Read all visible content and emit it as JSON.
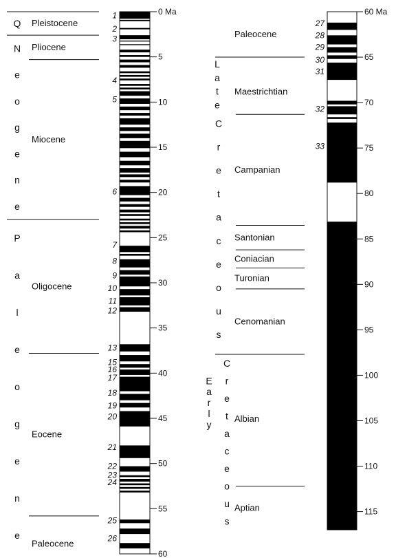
{
  "colors": {
    "normal": "#000000",
    "reversed": "#ffffff",
    "ink": "#111111"
  },
  "left_column": {
    "scale": {
      "min": 0,
      "max": 60,
      "unit": "Ma",
      "ticks": [
        {
          "v": 0,
          "label": "0 Ma"
        },
        {
          "v": 5,
          "label": "5"
        },
        {
          "v": 10,
          "label": "10"
        },
        {
          "v": 15,
          "label": "15"
        },
        {
          "v": 20,
          "label": "20"
        },
        {
          "v": 25,
          "label": "25"
        },
        {
          "v": 30,
          "label": "30"
        },
        {
          "v": 35,
          "label": "35"
        },
        {
          "v": 40,
          "label": "40"
        },
        {
          "v": 45,
          "label": "45"
        },
        {
          "v": 50,
          "label": "50"
        },
        {
          "v": 55,
          "label": "55"
        },
        {
          "v": 60,
          "label": "60"
        }
      ]
    },
    "era_letters": [
      {
        "text": "Q",
        "a": 0,
        "b": 2.6
      },
      {
        "text": "Neogene",
        "a": 2.6,
        "b": 23.0
      },
      {
        "text": "Paleogene",
        "a": 23.0,
        "b": 60
      }
    ],
    "epochs": [
      {
        "text": "Pleistocene",
        "a": 0,
        "b": 2.6
      },
      {
        "text": "Pliocene",
        "a": 2.6,
        "b": 5.3
      },
      {
        "text": "Miocene",
        "a": 5.3,
        "b": 23.0
      },
      {
        "text": "Oligocene",
        "a": 23.0,
        "b": 37.8
      },
      {
        "text": "Eocene",
        "a": 37.8,
        "b": 55.8
      },
      {
        "text": "Paleocene",
        "a": 55.8,
        "b": 60
      }
    ],
    "chrons": [
      {
        "label": "1",
        "v": 0.4
      },
      {
        "label": "2",
        "v": 1.9
      },
      {
        "label": "3",
        "v": 3.0
      },
      {
        "label": "4",
        "v": 7.6
      },
      {
        "label": "5",
        "v": 9.7
      },
      {
        "label": "6",
        "v": 19.9
      },
      {
        "label": "7",
        "v": 25.8
      },
      {
        "label": "8",
        "v": 27.6
      },
      {
        "label": "9",
        "v": 29.2
      },
      {
        "label": "10",
        "v": 30.6
      },
      {
        "label": "11",
        "v": 32.0
      },
      {
        "label": "12",
        "v": 33.1
      },
      {
        "label": "13",
        "v": 37.2
      },
      {
        "label": "15",
        "v": 38.8
      },
      {
        "label": "16",
        "v": 39.6
      },
      {
        "label": "17",
        "v": 40.5
      },
      {
        "label": "18",
        "v": 42.2
      },
      {
        "label": "19",
        "v": 43.6
      },
      {
        "label": "20",
        "v": 44.8
      },
      {
        "label": "21",
        "v": 48.2
      },
      {
        "label": "22",
        "v": 50.3
      },
      {
        "label": "23",
        "v": 51.3
      },
      {
        "label": "24",
        "v": 52.1
      },
      {
        "label": "25",
        "v": 56.3
      },
      {
        "label": "26",
        "v": 58.3
      }
    ],
    "normal_intervals": [
      [
        0,
        0.78
      ],
      [
        0.9,
        1.05
      ],
      [
        1.8,
        1.95
      ],
      [
        2.6,
        3.05
      ],
      [
        3.2,
        3.3
      ],
      [
        3.6,
        3.7
      ],
      [
        4.2,
        4.5
      ],
      [
        4.8,
        5.0
      ],
      [
        5.3,
        5.6
      ],
      [
        5.9,
        6.2
      ],
      [
        6.6,
        6.8
      ],
      [
        7.0,
        7.2
      ],
      [
        7.4,
        7.6
      ],
      [
        8.0,
        8.2
      ],
      [
        8.4,
        8.6
      ],
      [
        8.8,
        9.3
      ],
      [
        9.6,
        10.2
      ],
      [
        10.5,
        10.9
      ],
      [
        11.2,
        11.5
      ],
      [
        11.8,
        12.5
      ],
      [
        12.8,
        13.2
      ],
      [
        13.5,
        14.0
      ],
      [
        14.3,
        15.1
      ],
      [
        15.5,
        16.1
      ],
      [
        16.5,
        17.0
      ],
      [
        17.3,
        17.8
      ],
      [
        18.0,
        18.3
      ],
      [
        18.6,
        18.9
      ],
      [
        19.3,
        20.3
      ],
      [
        20.6,
        21.0
      ],
      [
        21.3,
        21.6
      ],
      [
        21.9,
        22.2
      ],
      [
        22.4,
        22.6
      ],
      [
        22.9,
        23.1
      ],
      [
        23.3,
        23.5
      ],
      [
        23.7,
        24.0
      ],
      [
        24.2,
        24.4
      ],
      [
        25.9,
        26.6
      ],
      [
        26.8,
        27.0
      ],
      [
        27.4,
        28.3
      ],
      [
        28.6,
        29.1
      ],
      [
        29.3,
        30.4
      ],
      [
        30.7,
        31.4
      ],
      [
        31.6,
        32.5
      ],
      [
        32.7,
        33.2
      ],
      [
        36.8,
        37.6
      ],
      [
        38.0,
        38.7
      ],
      [
        39.0,
        39.4
      ],
      [
        39.6,
        40.2
      ],
      [
        40.4,
        42.0
      ],
      [
        42.3,
        43.0
      ],
      [
        43.3,
        43.8
      ],
      [
        44.2,
        45.9
      ],
      [
        48.0,
        49.4
      ],
      [
        50.3,
        50.9
      ],
      [
        51.3,
        51.5
      ],
      [
        51.7,
        52.0
      ],
      [
        52.2,
        52.4
      ],
      [
        52.6,
        52.8
      ],
      [
        53.0,
        53.2
      ],
      [
        56.2,
        56.6
      ],
      [
        57.2,
        57.8
      ],
      [
        58.8,
        59.4
      ]
    ]
  },
  "right_column": {
    "scale": {
      "min": 60,
      "max": 117,
      "unit": "Ma",
      "ticks": [
        {
          "v": 60,
          "label": "60 Ma"
        },
        {
          "v": 65,
          "label": "65"
        },
        {
          "v": 70,
          "label": "70"
        },
        {
          "v": 75,
          "label": "75"
        },
        {
          "v": 80,
          "label": "80"
        },
        {
          "v": 85,
          "label": "85"
        },
        {
          "v": 90,
          "label": "90"
        },
        {
          "v": 95,
          "label": "95"
        },
        {
          "v": 100,
          "label": "100"
        },
        {
          "v": 105,
          "label": "105"
        },
        {
          "v": 110,
          "label": "110"
        },
        {
          "v": 115,
          "label": "115"
        }
      ]
    },
    "epoch_labels": [
      {
        "text": "Paleocene",
        "a": 60,
        "b": 65.0
      },
      {
        "text": "Late",
        "a": 65.0,
        "b": 97.7
      },
      {
        "text": "Early",
        "a": 97.7,
        "b": 117
      }
    ],
    "system_letters": [
      {
        "text": "Cretaceous",
        "a": 71.0,
        "b": 96.8
      },
      {
        "text": "Cretaceous",
        "a": 97.7,
        "b": 117
      }
    ],
    "stages": [
      {
        "text": "Maestrichtian",
        "a": 65.0,
        "b": 71.3
      },
      {
        "text": "Campanian",
        "a": 71.3,
        "b": 83.5
      },
      {
        "text": "Santonian",
        "a": 83.5,
        "b": 86.2
      },
      {
        "text": "Coniacian",
        "a": 86.2,
        "b": 88.2
      },
      {
        "text": "Turonian",
        "a": 88.2,
        "b": 90.5
      },
      {
        "text": "Cenomanian",
        "a": 90.5,
        "b": 97.7
      },
      {
        "text": "Albian",
        "a": 97.7,
        "b": 112.2
      },
      {
        "text": "Aptian",
        "a": 112.2,
        "b": 117
      }
    ],
    "chrons": [
      {
        "label": "27",
        "v": 61.3
      },
      {
        "label": "28",
        "v": 62.6
      },
      {
        "label": "29",
        "v": 63.9
      },
      {
        "label": "30",
        "v": 65.3
      },
      {
        "label": "31",
        "v": 66.6
      },
      {
        "label": "32",
        "v": 70.7
      },
      {
        "label": "33",
        "v": 74.8
      }
    ],
    "normal_intervals": [
      [
        61.2,
        62.0
      ],
      [
        62.6,
        63.6
      ],
      [
        63.9,
        64.5
      ],
      [
        64.8,
        65.2
      ],
      [
        65.6,
        67.5
      ],
      [
        69.8,
        70.2
      ],
      [
        70.4,
        71.3
      ],
      [
        71.6,
        71.8
      ],
      [
        72.2,
        78.8
      ],
      [
        83.1,
        117
      ]
    ]
  }
}
